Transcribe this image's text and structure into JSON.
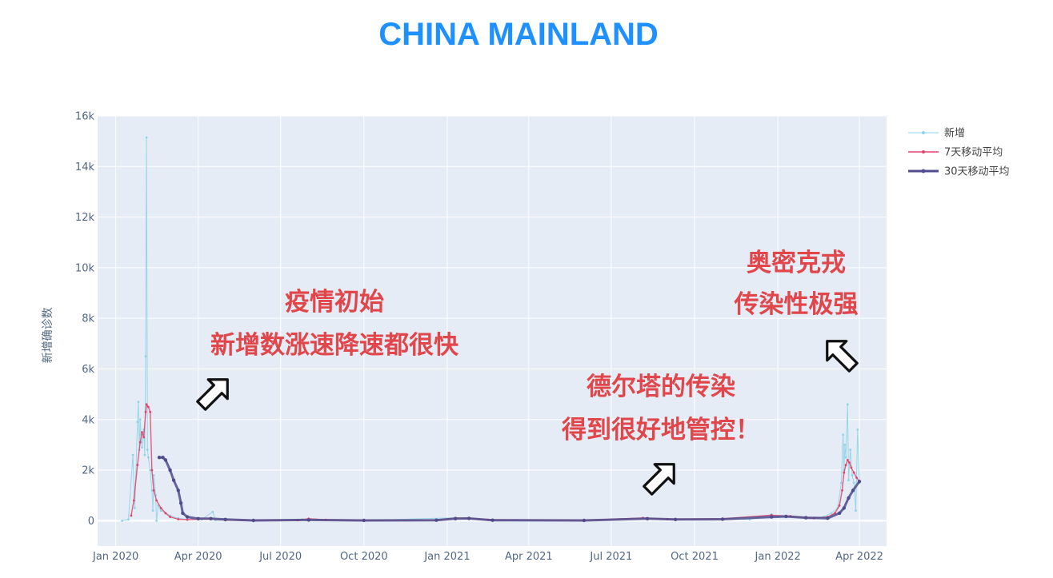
{
  "chart_data": {
    "type": "line",
    "title": "CHINA MAINLAND",
    "ylabel": "新增确诊数",
    "xlabel": "",
    "ylim": [
      -1000,
      16000
    ],
    "yticks": [
      0,
      2000,
      4000,
      6000,
      8000,
      10000,
      12000,
      14000,
      16000
    ],
    "ytick_labels": [
      "0",
      "2k",
      "4k",
      "6k",
      "8k",
      "10k",
      "12k",
      "14k",
      "16k"
    ],
    "xlim": [
      "2019-12-12",
      "2022-05-01"
    ],
    "xticks": [
      "2020-01-01",
      "2020-04-01",
      "2020-07-01",
      "2020-10-01",
      "2021-01-01",
      "2021-04-01",
      "2021-07-01",
      "2021-10-01",
      "2022-01-01",
      "2022-04-01"
    ],
    "xtick_labels": [
      "Jan 2020",
      "Apr 2020",
      "Jul 2020",
      "Oct 2020",
      "Jan 2021",
      "Apr 2021",
      "Jul 2021",
      "Oct 2021",
      "Jan 2022",
      "Apr 2022"
    ],
    "grid": true,
    "legend_position": "top-right",
    "series": [
      {
        "name": "新增",
        "color": "#8fd3e8",
        "width": 1,
        "points": [
          [
            "2020-01-08",
            0
          ],
          [
            "2020-01-15",
            50
          ],
          [
            "2020-01-20",
            2600
          ],
          [
            "2020-01-22",
            500
          ],
          [
            "2020-01-25",
            3900
          ],
          [
            "2020-01-26",
            4700
          ],
          [
            "2020-01-27",
            2800
          ],
          [
            "2020-01-28",
            4000
          ],
          [
            "2020-01-29",
            3400
          ],
          [
            "2020-01-30",
            2900
          ],
          [
            "2020-02-01",
            3600
          ],
          [
            "2020-02-02",
            2600
          ],
          [
            "2020-02-03",
            6500
          ],
          [
            "2020-02-04",
            15150
          ],
          [
            "2020-02-05",
            2800
          ],
          [
            "2020-02-06",
            2500
          ],
          [
            "2020-02-08",
            2000
          ],
          [
            "2020-02-10",
            1200
          ],
          [
            "2020-02-11",
            400
          ],
          [
            "2020-02-12",
            1800
          ],
          [
            "2020-02-14",
            1000
          ],
          [
            "2020-02-15",
            0
          ],
          [
            "2020-02-17",
            600
          ],
          [
            "2020-02-20",
            400
          ],
          [
            "2020-02-25",
            300
          ],
          [
            "2020-03-01",
            200
          ],
          [
            "2020-03-10",
            100
          ],
          [
            "2020-03-20",
            50
          ],
          [
            "2020-04-05",
            50
          ],
          [
            "2020-04-17",
            350
          ],
          [
            "2020-04-20",
            20
          ],
          [
            "2020-06-01",
            10
          ],
          [
            "2020-07-25",
            60
          ],
          [
            "2020-08-10",
            30
          ],
          [
            "2020-10-01",
            10
          ],
          [
            "2021-01-10",
            120
          ],
          [
            "2021-01-20",
            90
          ],
          [
            "2021-02-20",
            10
          ],
          [
            "2021-06-01",
            20
          ],
          [
            "2021-08-05",
            120
          ],
          [
            "2021-09-01",
            60
          ],
          [
            "2021-11-01",
            80
          ],
          [
            "2021-12-01",
            50
          ],
          [
            "2021-12-25",
            250
          ],
          [
            "2022-01-01",
            150
          ],
          [
            "2022-01-15",
            180
          ],
          [
            "2022-02-01",
            100
          ],
          [
            "2022-02-20",
            150
          ],
          [
            "2022-03-01",
            300
          ],
          [
            "2022-03-08",
            500
          ],
          [
            "2022-03-12",
            1500
          ],
          [
            "2022-03-14",
            3400
          ],
          [
            "2022-03-15",
            2000
          ],
          [
            "2022-03-16",
            3000
          ],
          [
            "2022-03-17",
            2500
          ],
          [
            "2022-03-19",
            4600
          ],
          [
            "2022-03-20",
            1600
          ],
          [
            "2022-03-22",
            2800
          ],
          [
            "2022-03-24",
            1800
          ],
          [
            "2022-03-26",
            1500
          ],
          [
            "2022-03-28",
            400
          ],
          [
            "2022-03-30",
            3600
          ],
          [
            "2022-04-01",
            1500
          ]
        ]
      },
      {
        "name": "7天移动平均",
        "color": "#e0436a",
        "width": 1.4,
        "points": [
          [
            "2020-01-18",
            200
          ],
          [
            "2020-01-21",
            800
          ],
          [
            "2020-01-25",
            2200
          ],
          [
            "2020-01-28",
            3100
          ],
          [
            "2020-01-30",
            3500
          ],
          [
            "2020-02-01",
            3300
          ],
          [
            "2020-02-03",
            4300
          ],
          [
            "2020-02-04",
            4600
          ],
          [
            "2020-02-06",
            4500
          ],
          [
            "2020-02-08",
            4300
          ],
          [
            "2020-02-10",
            2000
          ],
          [
            "2020-02-12",
            1200
          ],
          [
            "2020-02-15",
            800
          ],
          [
            "2020-02-20",
            500
          ],
          [
            "2020-02-25",
            300
          ],
          [
            "2020-03-01",
            150
          ],
          [
            "2020-03-10",
            60
          ],
          [
            "2020-03-20",
            40
          ],
          [
            "2020-04-15",
            80
          ],
          [
            "2020-05-01",
            20
          ],
          [
            "2020-07-20",
            20
          ],
          [
            "2020-08-01",
            80
          ],
          [
            "2020-08-20",
            40
          ],
          [
            "2020-10-01",
            10
          ],
          [
            "2020-12-20",
            30
          ],
          [
            "2021-01-10",
            110
          ],
          [
            "2021-01-25",
            100
          ],
          [
            "2021-02-15",
            40
          ],
          [
            "2021-06-01",
            20
          ],
          [
            "2021-08-05",
            110
          ],
          [
            "2021-09-01",
            60
          ],
          [
            "2021-11-01",
            80
          ],
          [
            "2021-12-25",
            220
          ],
          [
            "2022-01-15",
            180
          ],
          [
            "2022-02-10",
            100
          ],
          [
            "2022-02-25",
            150
          ],
          [
            "2022-03-05",
            300
          ],
          [
            "2022-03-10",
            600
          ],
          [
            "2022-03-13",
            1200
          ],
          [
            "2022-03-15",
            1900
          ],
          [
            "2022-03-17",
            2200
          ],
          [
            "2022-03-19",
            2400
          ],
          [
            "2022-03-21",
            2300
          ],
          [
            "2022-03-23",
            2100
          ],
          [
            "2022-03-26",
            1900
          ],
          [
            "2022-03-29",
            1700
          ],
          [
            "2022-04-01",
            1550
          ]
        ]
      },
      {
        "name": "30天移动平均",
        "color": "#4f4b8c",
        "width": 3,
        "points": [
          [
            "2020-02-18",
            2500
          ],
          [
            "2020-02-22",
            2500
          ],
          [
            "2020-02-25",
            2400
          ],
          [
            "2020-03-01",
            2000
          ],
          [
            "2020-03-05",
            1600
          ],
          [
            "2020-03-10",
            1200
          ],
          [
            "2020-03-13",
            700
          ],
          [
            "2020-03-15",
            300
          ],
          [
            "2020-03-20",
            150
          ],
          [
            "2020-04-01",
            80
          ],
          [
            "2020-04-15",
            80
          ],
          [
            "2020-05-01",
            50
          ],
          [
            "2020-06-01",
            10
          ],
          [
            "2020-08-01",
            30
          ],
          [
            "2020-10-01",
            10
          ],
          [
            "2020-12-20",
            20
          ],
          [
            "2021-01-10",
            80
          ],
          [
            "2021-01-25",
            90
          ],
          [
            "2021-02-20",
            20
          ],
          [
            "2021-06-01",
            10
          ],
          [
            "2021-08-10",
            80
          ],
          [
            "2021-09-10",
            50
          ],
          [
            "2021-11-01",
            60
          ],
          [
            "2021-12-25",
            150
          ],
          [
            "2022-01-10",
            170
          ],
          [
            "2022-02-01",
            120
          ],
          [
            "2022-02-25",
            100
          ],
          [
            "2022-03-10",
            300
          ],
          [
            "2022-03-15",
            500
          ],
          [
            "2022-03-20",
            900
          ],
          [
            "2022-03-25",
            1200
          ],
          [
            "2022-04-01",
            1550
          ]
        ]
      }
    ],
    "annotations": [
      {
        "lines": [
          "疫情初始",
          "新增数涨速降速都很快"
        ]
      },
      {
        "lines": [
          "德尔塔的传染",
          "得到很好地管控！"
        ]
      },
      {
        "lines": [
          "奥密克戎",
          "传染性极强"
        ]
      }
    ]
  }
}
